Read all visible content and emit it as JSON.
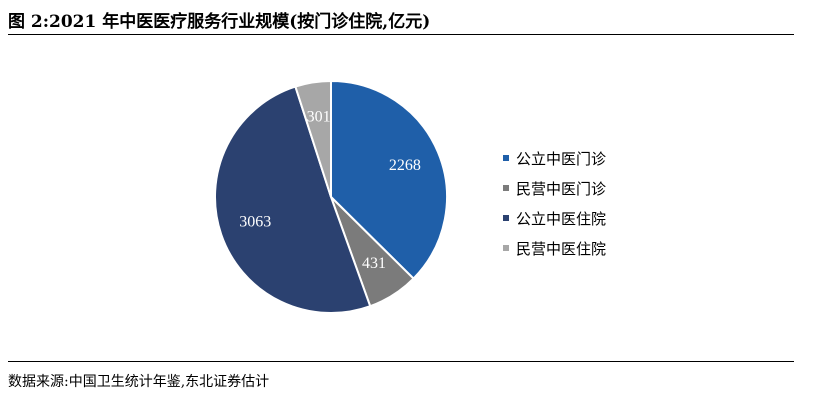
{
  "figure": {
    "title": "图 2:2021 年中医医疗服务行业规模(按门诊住院,亿元)",
    "source": "数据来源:中国卫生统计年鉴,东北证券估计"
  },
  "chart_data": {
    "type": "pie",
    "categories": [
      "公立中医门诊",
      "民营中医门诊",
      "公立中医住院",
      "民营中医住院"
    ],
    "values": [
      2268,
      431,
      3063,
      301
    ],
    "colors": [
      "#1f5fa9",
      "#7b7b7b",
      "#2b4170",
      "#a7a7a7"
    ],
    "slice_labels": [
      "2268",
      "431",
      "3063",
      "301"
    ],
    "start_angle": "12 o'clock",
    "direction": "clockwise",
    "legend_position": "right",
    "legend": [
      "公立中医门诊",
      "民营中医门诊",
      "公立中医住院",
      "民营中医住院"
    ]
  }
}
